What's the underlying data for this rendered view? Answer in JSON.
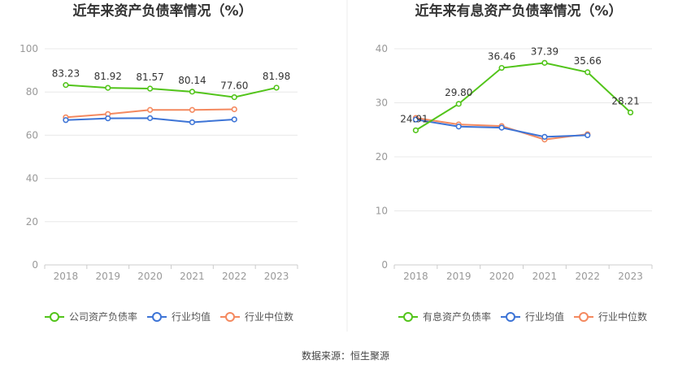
{
  "chart_data": [
    {
      "type": "line",
      "title": "近年来资产负债率情况（%）",
      "categories": [
        "2018",
        "2019",
        "2020",
        "2021",
        "2022",
        "2023"
      ],
      "ylim": [
        0,
        100
      ],
      "yticks": [
        "0",
        "20",
        "40",
        "60",
        "80",
        "100"
      ],
      "grid": true,
      "legend_position": "bottom",
      "series": [
        {
          "name": "公司资产负债率",
          "color": "#52c41a",
          "values": [
            83.23,
            81.92,
            81.57,
            80.14,
            77.6,
            81.98
          ],
          "labels": [
            "83.23",
            "81.92",
            "81.57",
            "80.14",
            "77.60",
            "81.98"
          ]
        },
        {
          "name": "行业均值",
          "color": "#3d74d6",
          "values": [
            67.0,
            67.8,
            67.9,
            66.0,
            67.3,
            null
          ]
        },
        {
          "name": "行业中位数",
          "color": "#f4895f",
          "values": [
            68.3,
            69.8,
            71.7,
            71.7,
            72.0,
            null
          ]
        }
      ]
    },
    {
      "type": "line",
      "title": "近年来有息资产负债率情况（%）",
      "categories": [
        "2018",
        "2019",
        "2020",
        "2021",
        "2022",
        "2023"
      ],
      "ylim": [
        0,
        40
      ],
      "yticks": [
        "0",
        "10",
        "20",
        "30",
        "40"
      ],
      "grid": true,
      "legend_position": "bottom",
      "series": [
        {
          "name": "有息资产负债率",
          "color": "#52c41a",
          "values": [
            24.91,
            29.8,
            36.46,
            37.39,
            35.66,
            28.21
          ],
          "labels": [
            "24.91",
            "29.80",
            "36.46",
            "37.39",
            "35.66",
            "28.21"
          ]
        },
        {
          "name": "行业均值",
          "color": "#3d74d6",
          "values": [
            26.9,
            25.6,
            25.4,
            23.7,
            24.0,
            null
          ]
        },
        {
          "name": "行业中位数",
          "color": "#f4895f",
          "values": [
            27.2,
            26.0,
            25.7,
            23.2,
            24.2,
            null
          ]
        }
      ]
    }
  ],
  "source": "数据来源：恒生聚源"
}
